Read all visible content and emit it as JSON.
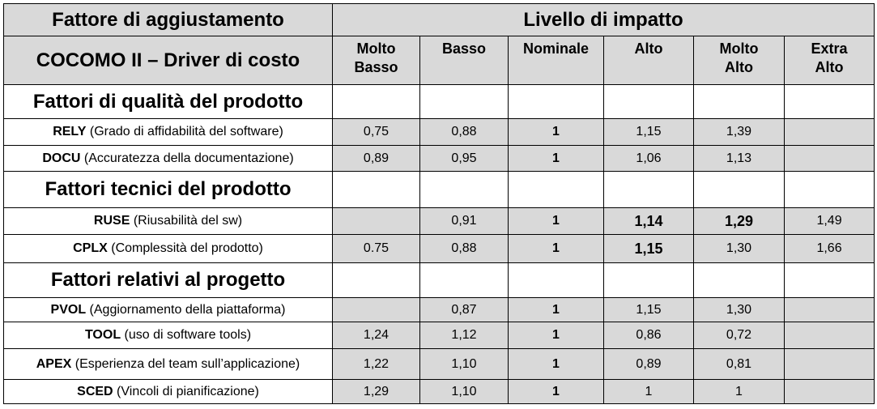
{
  "header": {
    "left_top": "Fattore di aggiustamento",
    "right_top": "Livello di impatto",
    "left_sub": "COCOMO II – Driver di costo",
    "levels": [
      [
        "Molto",
        "Basso"
      ],
      [
        "Basso"
      ],
      [
        "Nominale"
      ],
      [
        "Alto"
      ],
      [
        "Molto",
        "Alto"
      ],
      [
        "Extra",
        "Alto"
      ]
    ]
  },
  "sections": [
    {
      "title": "Fattori di qualità del prodotto",
      "rows": [
        {
          "code": "RELY",
          "desc": "(Grado di affidabilità del software)",
          "values": [
            "0,75",
            "0,88",
            "1",
            "1,15",
            "1,39",
            ""
          ]
        },
        {
          "code": "DOCU",
          "desc": "(Accuratezza della documentazione)",
          "values": [
            "0,89",
            "0,95",
            "1",
            "1,06",
            "1,13",
            ""
          ]
        }
      ]
    },
    {
      "title": "Fattori tecnici del prodotto",
      "rows": [
        {
          "code": "RUSE",
          "desc": "(Riusabilità del sw)",
          "values": [
            "",
            "0,91",
            "1",
            "1,14",
            "1,29",
            "1,49"
          ]
        },
        {
          "code": "CPLX",
          "desc": "(Complessità del prodotto)",
          "values": [
            "0.75",
            "0,88",
            "1",
            "1,15",
            "1,30",
            "1,66"
          ]
        }
      ]
    },
    {
      "title": "Fattori relativi al progetto",
      "rows": [
        {
          "code": "PVOL",
          "desc": "(Aggiornamento della piattaforma)",
          "values": [
            "",
            "0,87",
            "1",
            "1,15",
            "1,30",
            ""
          ]
        },
        {
          "code": "TOOL",
          "desc": "(uso di software tools)",
          "values": [
            "1,24",
            "1,12",
            "1",
            "0,86",
            "0,72",
            ""
          ]
        },
        {
          "code": "APEX",
          "desc": "(Esperienza del team sull’applicazione)",
          "values": [
            "1,22",
            "1,10",
            "1",
            "0,89",
            "0,81",
            ""
          ]
        },
        {
          "code": "SCED",
          "desc": "(Vincoli di pianificazione)",
          "values": [
            "1,29",
            "1,10",
            "1",
            "1",
            "1",
            ""
          ]
        }
      ]
    }
  ]
}
